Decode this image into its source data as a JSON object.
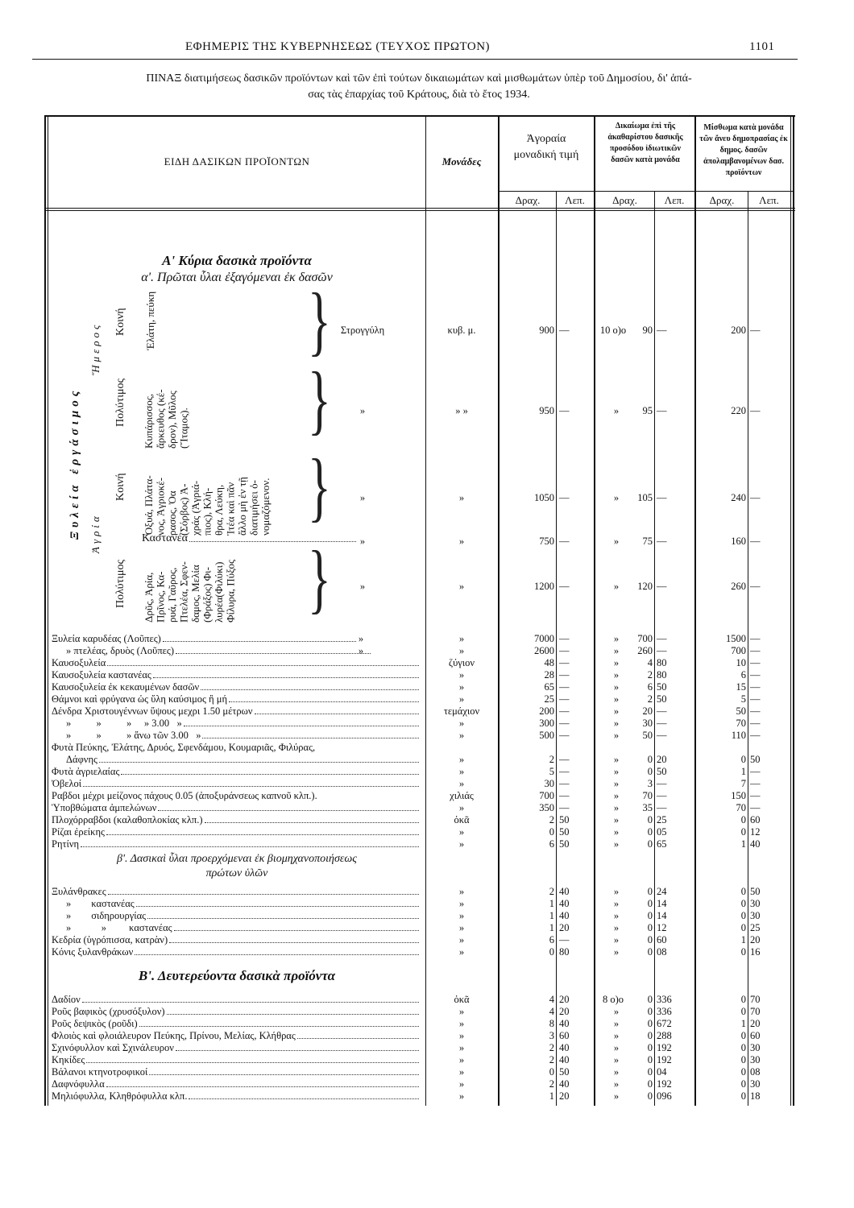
{
  "running_header": {
    "title": "ΕΦΗΜΕΡΙΣ ΤΗΣ ΚΥΒΕΡΝΗΣΕΩΣ (ΤΕΥΧΟΣ ΠΡΩΤΟΝ)",
    "page_number": "1101"
  },
  "table_title": {
    "line1": "ΠΙΝΑΞ διατιμήσεως δασικῶν προϊόντων καὶ τῶν ἐπὶ τούτων δικαιωμάτων καὶ μισθωμάτων ὑπὲρ τοῦ Δημοσίου, δι' ἁπά-",
    "line2": "σας τὰς ἐπαρχίας τοῦ Κράτους, διὰ τὸ ἔτος 1934."
  },
  "columns": {
    "products": "ΕΙΔΗ ΔΑΣΙΚΩΝ ΠΡΟΪΟΝΤΩΝ",
    "units": "Μονάδες",
    "market_price": "Ἀγοραία μοναδική τιμή",
    "right": "Δικαίωμα ἐπὶ τῆς ἀκαθαρίστου δασικῆς προσόδου ἰδιωτικῶν δασῶν κατὰ μονάδα",
    "rent": "Μίσθωμα κατὰ μονάδα τῶν ἄνευ δημοπρασίας ἐκ δημος. δασῶν ἀπολαμβανομένων δασ. προϊόντων",
    "drachmas": "Δραχ.",
    "lepta": "Λεπ."
  },
  "section_a": {
    "heading": "Α' Κύρια δασικὰ προϊόντα",
    "subheading": "α'. Πρῶται ὗλαι ἐξαγόμεναι ἐκ δασῶν",
    "timber": "Ξυλεία ἐργάσιμος",
    "domestic": "Ἥμερος",
    "wild": "Ἀγρία",
    "common1": "Κοινή",
    "precious1": "Πολύτιμος",
    "common2": "Κοινή",
    "precious2": "Πολύτιμος",
    "species1": "Ἐλάτη, πεύκη",
    "species2": [
      "Κυπάρισσος,",
      "ἄρκευθος (κέ-",
      "δρον), Μῦλος",
      "(Ἴταμος)."
    ],
    "species3": [
      "Ὀξυά, Πλάτα-",
      "νος, Ἀγριοκέ-",
      "ρασος, Ὀα",
      "(Σόρβος) Ἀ-",
      "χράς (Ἀγριά-",
      "πιος), Κλή-",
      "θρα, Λεύκη,",
      "Ἰτέα καὶ πᾶν",
      "ἄλλο μὴ ἐν τῇ",
      "διατιμήσει ὀ-",
      "νομαζόμενον."
    ],
    "chestnut": "Καστανέα",
    "species5": [
      "Δρῦς, Ἀρία,",
      "Πρῖνος, Κα-",
      "ρυά, Γαῦρος,",
      "Πτελέα, Σφεν-",
      "δαμος, Μελία",
      "(Φράξος) Φι-",
      "λυρέα(Φιλύκι)",
      "Φίλυρα, Πύξος"
    ],
    "rows": [
      {
        "kind": "Στρογγύλη",
        "unit": "κυβ. μ.",
        "a_dr": "900",
        "a_lep": "—",
        "pre": "10 ο)ο",
        "d_dr": "90",
        "d_lep": "—",
        "m_dr": "200",
        "m_lep": "—"
      },
      {
        "kind": "»",
        "unit": "» »",
        "a_dr": "950",
        "a_lep": "—",
        "pre": "»",
        "d_dr": "95",
        "d_lep": "—",
        "m_dr": "220",
        "m_lep": "—"
      },
      {
        "kind": "»",
        "unit": "»",
        "a_dr": "1050",
        "a_lep": "—",
        "pre": "»",
        "d_dr": "105",
        "d_lep": "—",
        "m_dr": "240",
        "m_lep": "—"
      },
      {
        "kind": "»",
        "unit": "»",
        "a_dr": "750",
        "a_lep": "—",
        "pre": "»",
        "d_dr": "75",
        "d_lep": "—",
        "m_dr": "160",
        "m_lep": "—"
      },
      {
        "kind": "»",
        "unit": "»",
        "a_dr": "1200",
        "a_lep": "—",
        "pre": "»",
        "d_dr": "120",
        "d_lep": "—",
        "m_dr": "260",
        "m_lep": "—"
      }
    ]
  },
  "rows": [
    {
      "name": "Ξυλεία καρυδέας (Λοῦπες)",
      "kind": "»",
      "unit": "»",
      "a_dr": "7000",
      "a_lep": "—",
      "pre": "»",
      "d_dr": "700",
      "d_lep": "—",
      "m_dr": "1500",
      "m_lep": "—"
    },
    {
      "name": "» πτελέας, δρυὸς (Λοῦπες)",
      "indent": 1,
      "kind": "»",
      "unit": "»",
      "a_dr": "2600",
      "a_lep": "—",
      "pre": "»",
      "d_dr": "260",
      "d_lep": "—",
      "m_dr": "700",
      "m_lep": "—"
    },
    {
      "name": "Καυσοξυλεία",
      "unit": "ζύγιον",
      "a_dr": "48",
      "a_lep": "—",
      "pre": "»",
      "d_dr": "4",
      "d_lep": "80",
      "m_dr": "10",
      "m_lep": "—"
    },
    {
      "name": "Καυσοξυλεία καστανέας",
      "unit": "»",
      "a_dr": "28",
      "a_lep": "—",
      "pre": "»",
      "d_dr": "2",
      "d_lep": "80",
      "m_dr": "6",
      "m_lep": "—"
    },
    {
      "name": "Καυσοξυλεία ἐκ κεκαυμένων δασῶν",
      "unit": "»",
      "a_dr": "65",
      "a_lep": "—",
      "pre": "»",
      "d_dr": "6",
      "d_lep": "50",
      "m_dr": "15",
      "m_lep": "—"
    },
    {
      "name": "Θάμνοι καὶ φρύγανα ὡς ὕλη καύσιμος ἢ μή",
      "unit": "»",
      "a_dr": "25",
      "a_lep": "—",
      "pre": "»",
      "d_dr": "2",
      "d_lep": "50",
      "m_dr": "5",
      "m_lep": "—"
    },
    {
      "name": "Δένδρα Χριστουγέννων ὕψους μεχρι 1.50 μέτρων",
      "unit": "τεμάχιον",
      "a_dr": "200",
      "a_lep": "—",
      "pre": "»",
      "d_dr": "20",
      "d_lep": "—",
      "m_dr": "50",
      "m_lep": "—"
    },
    {
      "name": "»          »          »     » 3.00   »",
      "indent": 1,
      "unit": "»",
      "a_dr": "300",
      "a_lep": "—",
      "pre": "»",
      "d_dr": "30",
      "d_lep": "—",
      "m_dr": "70",
      "m_lep": "—"
    },
    {
      "name": "»          »          » ἄνω τῶν 3.00   »",
      "indent": 1,
      "unit": "»",
      "a_dr": "500",
      "a_lep": "—",
      "pre": "»",
      "d_dr": "50",
      "d_lep": "—",
      "m_dr": "110",
      "m_lep": "—"
    },
    {
      "name": "Φυτὰ Πεύκης, Ἐλάτης, Δρυός, Σφενδάμου, Κουμαριᾶς, Φιλύρας,",
      "noleader": true
    },
    {
      "name": "Δάφνης",
      "indent": 1,
      "unit": "»",
      "a_dr": "2",
      "a_lep": "—",
      "pre": "»",
      "d_dr": "0",
      "d_lep": "20",
      "m_dr": "0",
      "m_lep": "50"
    },
    {
      "name": "Φυτὰ ἀγριελαίας",
      "unit": "»",
      "a_dr": "5",
      "a_lep": "—",
      "pre": "»",
      "d_dr": "0",
      "d_lep": "50",
      "m_dr": "1",
      "m_lep": "—"
    },
    {
      "name": "Ὀβελοί",
      "unit": "»",
      "a_dr": "30",
      "a_lep": "—",
      "pre": "»",
      "d_dr": "3",
      "d_lep": "—",
      "m_dr": "7",
      "m_lep": "—"
    },
    {
      "name": "Ραβδοι μέχρι μείζονος πάχους 0.05 (ἀποξυράνσεως καπνοῦ κλπ.).",
      "noleader": true,
      "unit": "χιλιάς",
      "a_dr": "700",
      "a_lep": "—",
      "pre": "»",
      "d_dr": "70",
      "d_lep": "—",
      "m_dr": "150",
      "m_lep": "—"
    },
    {
      "name": "Ὑποβθώματα ἀμπελώνων",
      "unit": "»",
      "a_dr": "350",
      "a_lep": "—",
      "pre": "»",
      "d_dr": "35",
      "d_lep": "—",
      "m_dr": "70",
      "m_lep": "—"
    },
    {
      "name": "Πλοχόρραβδοι (καλαθοπλοκίας κλπ.)",
      "unit": "ὀκᾶ",
      "a_dr": "2",
      "a_lep": "50",
      "pre": "»",
      "d_dr": "0",
      "d_lep": "25",
      "m_dr": "0",
      "m_lep": "60"
    },
    {
      "name": "Ρίζαι ἐρείκης",
      "unit": "»",
      "a_dr": "0",
      "a_lep": "50",
      "pre": "»",
      "d_dr": "0",
      "d_lep": "05",
      "m_dr": "0",
      "m_lep": "12"
    },
    {
      "name": "Ρητίνη",
      "unit": "»",
      "a_dr": "6",
      "a_lep": "50",
      "pre": "»",
      "d_dr": "0",
      "d_lep": "65",
      "m_dr": "1",
      "m_lep": "40"
    },
    {
      "heading": "β'. Δασικαὶ ὗλαι προερχόμεναι ἐκ βιομηχανοποιήσεως",
      "heading2": "πρώτων ὑλῶν"
    },
    {
      "name": "Ξυλάνθρακες",
      "unit": "»",
      "a_dr": "2",
      "a_lep": "40",
      "pre": "»",
      "d_dr": "0",
      "d_lep": "24",
      "m_dr": "0",
      "m_lep": "50"
    },
    {
      "name": "»        καστανέας",
      "indent": 1,
      "unit": "»",
      "a_dr": "1",
      "a_lep": "40",
      "pre": "»",
      "d_dr": "0",
      "d_lep": "14",
      "m_dr": "0",
      "m_lep": "30"
    },
    {
      "name": "»        σιδηρουργίας",
      "indent": 1,
      "unit": "»",
      "a_dr": "1",
      "a_lep": "40",
      "pre": "»",
      "d_dr": "0",
      "d_lep": "14",
      "m_dr": "0",
      "m_lep": "30"
    },
    {
      "name": "»            »         καστανέας",
      "indent": 1,
      "unit": "»",
      "a_dr": "1",
      "a_lep": "20",
      "pre": "»",
      "d_dr": "0",
      "d_lep": "12",
      "m_dr": "0",
      "m_lep": "25"
    },
    {
      "name": "Κεδρία (ὑγρόπισσα, κατρὰν)",
      "unit": "»",
      "a_dr": "6",
      "a_lep": "—",
      "pre": "»",
      "d_dr": "0",
      "d_lep": "60",
      "m_dr": "1",
      "m_lep": "20"
    },
    {
      "name": "Κόνις ξυλανθράκων",
      "unit": "»",
      "a_dr": "0",
      "a_lep": "80",
      "pre": "»",
      "d_dr": "0",
      "d_lep": "08",
      "m_dr": "0",
      "m_lep": "16"
    },
    {
      "heading": "Β'. Δευτερεύοντα δασικὰ προϊόντα",
      "bold": true
    },
    {
      "name": "Δαδίον",
      "unit": "ὀκᾶ",
      "a_dr": "4",
      "a_lep": "20",
      "pre": "8 ο)ο",
      "d_dr": "0",
      "d_lep": "336",
      "m_dr": "0",
      "m_lep": "70"
    },
    {
      "name": "Ροῦς βαφικὸς (χρυσόξυλον)",
      "unit": "»",
      "a_dr": "4",
      "a_lep": "20",
      "pre": "»",
      "d_dr": "0",
      "d_lep": "336",
      "m_dr": "0",
      "m_lep": "70"
    },
    {
      "name": "Ροῦς δεψικὸς (ροῦδι)",
      "unit": "»",
      "a_dr": "8",
      "a_lep": "40",
      "pre": "»",
      "d_dr": "0",
      "d_lep": "672",
      "m_dr": "1",
      "m_lep": "20"
    },
    {
      "name": "Φλοιὸς καὶ φλοιάλευρον Πεύκης, Πρίνου, Μελίας, Κλήθρας",
      "unit": "»",
      "a_dr": "3",
      "a_lep": "60",
      "pre": "»",
      "d_dr": "0",
      "d_lep": "288",
      "m_dr": "0",
      "m_lep": "60"
    },
    {
      "name": "Σχινόφυλλον καὶ Σχινάλευρον",
      "unit": "»",
      "a_dr": "2",
      "a_lep": "40",
      "pre": "»",
      "d_dr": "0",
      "d_lep": "192",
      "m_dr": "0",
      "m_lep": "30"
    },
    {
      "name": "Κηκίδες",
      "unit": "»",
      "a_dr": "2",
      "a_lep": "40",
      "pre": "»",
      "d_dr": "0",
      "d_lep": "192",
      "m_dr": "0",
      "m_lep": "30"
    },
    {
      "name": "Βάλανοι κτηνοτροφικοί",
      "unit": "»",
      "a_dr": "0",
      "a_lep": "50",
      "pre": "»",
      "d_dr": "0",
      "d_lep": "04",
      "m_dr": "0",
      "m_lep": "08"
    },
    {
      "name": "Δαφνόφυλλα",
      "unit": "»",
      "a_dr": "2",
      "a_lep": "40",
      "pre": "»",
      "d_dr": "0",
      "d_lep": "192",
      "m_dr": "0",
      "m_lep": "30"
    },
    {
      "name": "Μηλιόφυλλα, Κληθρόφυλλα κλπ.",
      "unit": "»",
      "a_dr": "1",
      "a_lep": "20",
      "pre": "»",
      "d_dr": "0",
      "d_lep": "096",
      "m_dr": "0",
      "m_lep": "18"
    }
  ]
}
